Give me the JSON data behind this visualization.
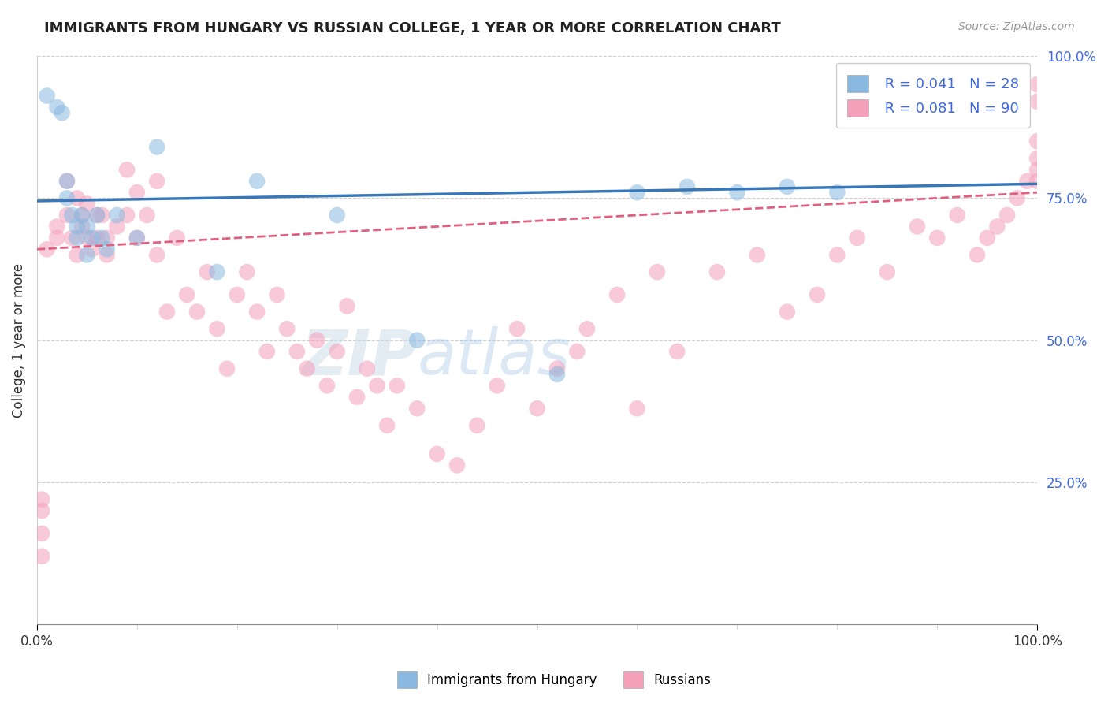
{
  "title": "IMMIGRANTS FROM HUNGARY VS RUSSIAN COLLEGE, 1 YEAR OR MORE CORRELATION CHART",
  "source_text": "Source: ZipAtlas.com",
  "ylabel": "College, 1 year or more",
  "xlim": [
    0.0,
    1.0
  ],
  "ylim": [
    0.0,
    1.0
  ],
  "grid_color": "#d0d0d0",
  "background_color": "#ffffff",
  "blue_color": "#89b8e0",
  "pink_color": "#f4a0bb",
  "blue_line_color": "#3878b8",
  "pink_line_color": "#e06080",
  "R_blue": 0.041,
  "N_blue": 28,
  "R_pink": 0.081,
  "N_pink": 90,
  "legend_label_blue": "Immigrants from Hungary",
  "legend_label_pink": "Russians",
  "blue_line_start": 0.745,
  "blue_line_end": 0.775,
  "pink_line_start": 0.66,
  "pink_line_end": 0.76,
  "blue_scatter_x": [
    0.01,
    0.02,
    0.025,
    0.03,
    0.03,
    0.035,
    0.04,
    0.04,
    0.045,
    0.05,
    0.05,
    0.055,
    0.06,
    0.065,
    0.07,
    0.08,
    0.1,
    0.12,
    0.18,
    0.22,
    0.3,
    0.38,
    0.52,
    0.6,
    0.65,
    0.7,
    0.75,
    0.8
  ],
  "blue_scatter_y": [
    0.93,
    0.91,
    0.9,
    0.78,
    0.75,
    0.72,
    0.7,
    0.68,
    0.72,
    0.7,
    0.65,
    0.68,
    0.72,
    0.68,
    0.66,
    0.72,
    0.68,
    0.84,
    0.62,
    0.78,
    0.72,
    0.5,
    0.44,
    0.76,
    0.77,
    0.76,
    0.77,
    0.76
  ],
  "pink_scatter_x": [
    0.01,
    0.02,
    0.02,
    0.03,
    0.03,
    0.035,
    0.04,
    0.04,
    0.045,
    0.045,
    0.05,
    0.05,
    0.055,
    0.06,
    0.06,
    0.065,
    0.07,
    0.07,
    0.08,
    0.09,
    0.09,
    0.1,
    0.1,
    0.11,
    0.12,
    0.12,
    0.13,
    0.14,
    0.15,
    0.16,
    0.17,
    0.18,
    0.19,
    0.2,
    0.21,
    0.22,
    0.23,
    0.24,
    0.25,
    0.26,
    0.27,
    0.28,
    0.29,
    0.3,
    0.31,
    0.32,
    0.33,
    0.34,
    0.35,
    0.36,
    0.38,
    0.4,
    0.42,
    0.44,
    0.46,
    0.48,
    0.5,
    0.52,
    0.54,
    0.55,
    0.58,
    0.6,
    0.62,
    0.64,
    0.68,
    0.72,
    0.75,
    0.78,
    0.8,
    0.82,
    0.85,
    0.88,
    0.9,
    0.92,
    0.94,
    0.95,
    0.96,
    0.97,
    0.98,
    0.99,
    1.0,
    1.0,
    1.0,
    1.0,
    1.0,
    1.0,
    0.005,
    0.005,
    0.005,
    0.005
  ],
  "pink_scatter_y": [
    0.66,
    0.68,
    0.7,
    0.72,
    0.78,
    0.68,
    0.65,
    0.75,
    0.72,
    0.7,
    0.68,
    0.74,
    0.66,
    0.72,
    0.68,
    0.72,
    0.65,
    0.68,
    0.7,
    0.8,
    0.72,
    0.76,
    0.68,
    0.72,
    0.65,
    0.78,
    0.55,
    0.68,
    0.58,
    0.55,
    0.62,
    0.52,
    0.45,
    0.58,
    0.62,
    0.55,
    0.48,
    0.58,
    0.52,
    0.48,
    0.45,
    0.5,
    0.42,
    0.48,
    0.56,
    0.4,
    0.45,
    0.42,
    0.35,
    0.42,
    0.38,
    0.3,
    0.28,
    0.35,
    0.42,
    0.52,
    0.38,
    0.45,
    0.48,
    0.52,
    0.58,
    0.38,
    0.62,
    0.48,
    0.62,
    0.65,
    0.55,
    0.58,
    0.65,
    0.68,
    0.62,
    0.7,
    0.68,
    0.72,
    0.65,
    0.68,
    0.7,
    0.72,
    0.75,
    0.78,
    0.8,
    0.82,
    0.85,
    0.78,
    0.92,
    0.95,
    0.12,
    0.2,
    0.16,
    0.22
  ]
}
